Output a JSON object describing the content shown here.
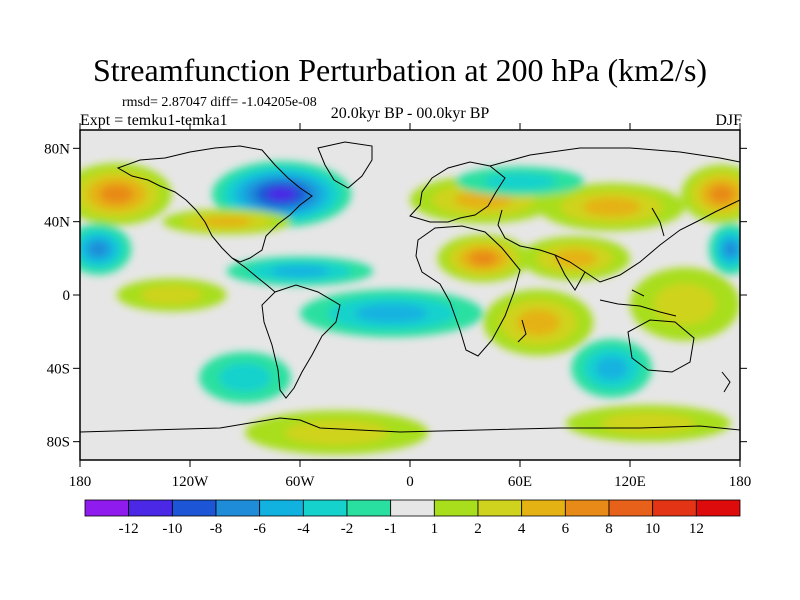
{
  "title": "Streamfunction Perturbation at 200 hPa (km2/s)",
  "stats": "rmsd= 2.87047 diff= -1.04205e-08",
  "experiment": "Expt = temku1-temka1",
  "period": "20.0kyr BP - 00.0kyr BP",
  "season": "DJF",
  "axes": {
    "lon_ticks": [
      {
        "lon": -180,
        "label": "180"
      },
      {
        "lon": -120,
        "label": "120W"
      },
      {
        "lon": -60,
        "label": "60W"
      },
      {
        "lon": 0,
        "label": "0"
      },
      {
        "lon": 60,
        "label": "60E"
      },
      {
        "lon": 120,
        "label": "120E"
      },
      {
        "lon": 180,
        "label": "180"
      }
    ],
    "lat_ticks": [
      {
        "lat": 80,
        "label": "80N"
      },
      {
        "lat": 40,
        "label": "40N"
      },
      {
        "lat": 0,
        "label": "0"
      },
      {
        "lat": -40,
        "label": "40S"
      },
      {
        "lat": -80,
        "label": "80S"
      }
    ],
    "lon_range": [
      -180,
      180
    ],
    "lat_range": [
      -90,
      90
    ]
  },
  "colorbar": {
    "colors": [
      "#8f1bef",
      "#4a28e6",
      "#1c55d6",
      "#1e8cd8",
      "#12b2e0",
      "#15d2cd",
      "#29e0a0",
      "#e6e6e6",
      "#a8de1c",
      "#cfd31d",
      "#e5b214",
      "#e88a17",
      "#e8611a",
      "#e33516",
      "#dd0b0b"
    ],
    "labels": [
      "-12",
      "-10",
      "-8",
      "-6",
      "-4",
      "-2",
      "-1",
      "1",
      "2",
      "4",
      "6",
      "8",
      "10",
      "12"
    ]
  },
  "field": {
    "background": "#e6e6e6",
    "anomalies": [
      {
        "lon": -70,
        "lat": 55,
        "rx": 38,
        "ry": 18,
        "value": -10
      },
      {
        "lon": -160,
        "lat": 55,
        "rx": 30,
        "ry": 17,
        "value": 6
      },
      {
        "lon": 170,
        "lat": 55,
        "rx": 22,
        "ry": 16,
        "value": 6
      },
      {
        "lon": 40,
        "lat": 52,
        "rx": 40,
        "ry": 13,
        "value": 4
      },
      {
        "lon": 110,
        "lat": 48,
        "rx": 40,
        "ry": 13,
        "value": 4
      },
      {
        "lon": -100,
        "lat": 40,
        "rx": 35,
        "ry": 7,
        "value": 4
      },
      {
        "lon": 40,
        "lat": 20,
        "rx": 25,
        "ry": 13,
        "value": 6
      },
      {
        "lon": 90,
        "lat": 20,
        "rx": 30,
        "ry": 12,
        "value": 4
      },
      {
        "lon": -170,
        "lat": 25,
        "rx": 18,
        "ry": 14,
        "value": -6
      },
      {
        "lon": 175,
        "lat": 25,
        "rx": 12,
        "ry": 14,
        "value": -6
      },
      {
        "lon": -60,
        "lat": 13,
        "rx": 40,
        "ry": 8,
        "value": -4
      },
      {
        "lon": 60,
        "lat": 62,
        "rx": 35,
        "ry": 8,
        "value": -2
      },
      {
        "lon": -130,
        "lat": 0,
        "rx": 30,
        "ry": 9,
        "value": 2
      },
      {
        "lon": -10,
        "lat": -10,
        "rx": 50,
        "ry": 13,
        "value": -4
      },
      {
        "lon": 70,
        "lat": -15,
        "rx": 30,
        "ry": 18,
        "value": 4
      },
      {
        "lon": 150,
        "lat": -5,
        "rx": 30,
        "ry": 20,
        "value": 2
      },
      {
        "lon": 110,
        "lat": -40,
        "rx": 22,
        "ry": 16,
        "value": -4
      },
      {
        "lon": -90,
        "lat": -45,
        "rx": 25,
        "ry": 14,
        "value": -2
      },
      {
        "lon": -40,
        "lat": -75,
        "rx": 50,
        "ry": 12,
        "value": 2
      },
      {
        "lon": 130,
        "lat": -70,
        "rx": 45,
        "ry": 10,
        "value": 2
      }
    ]
  }
}
